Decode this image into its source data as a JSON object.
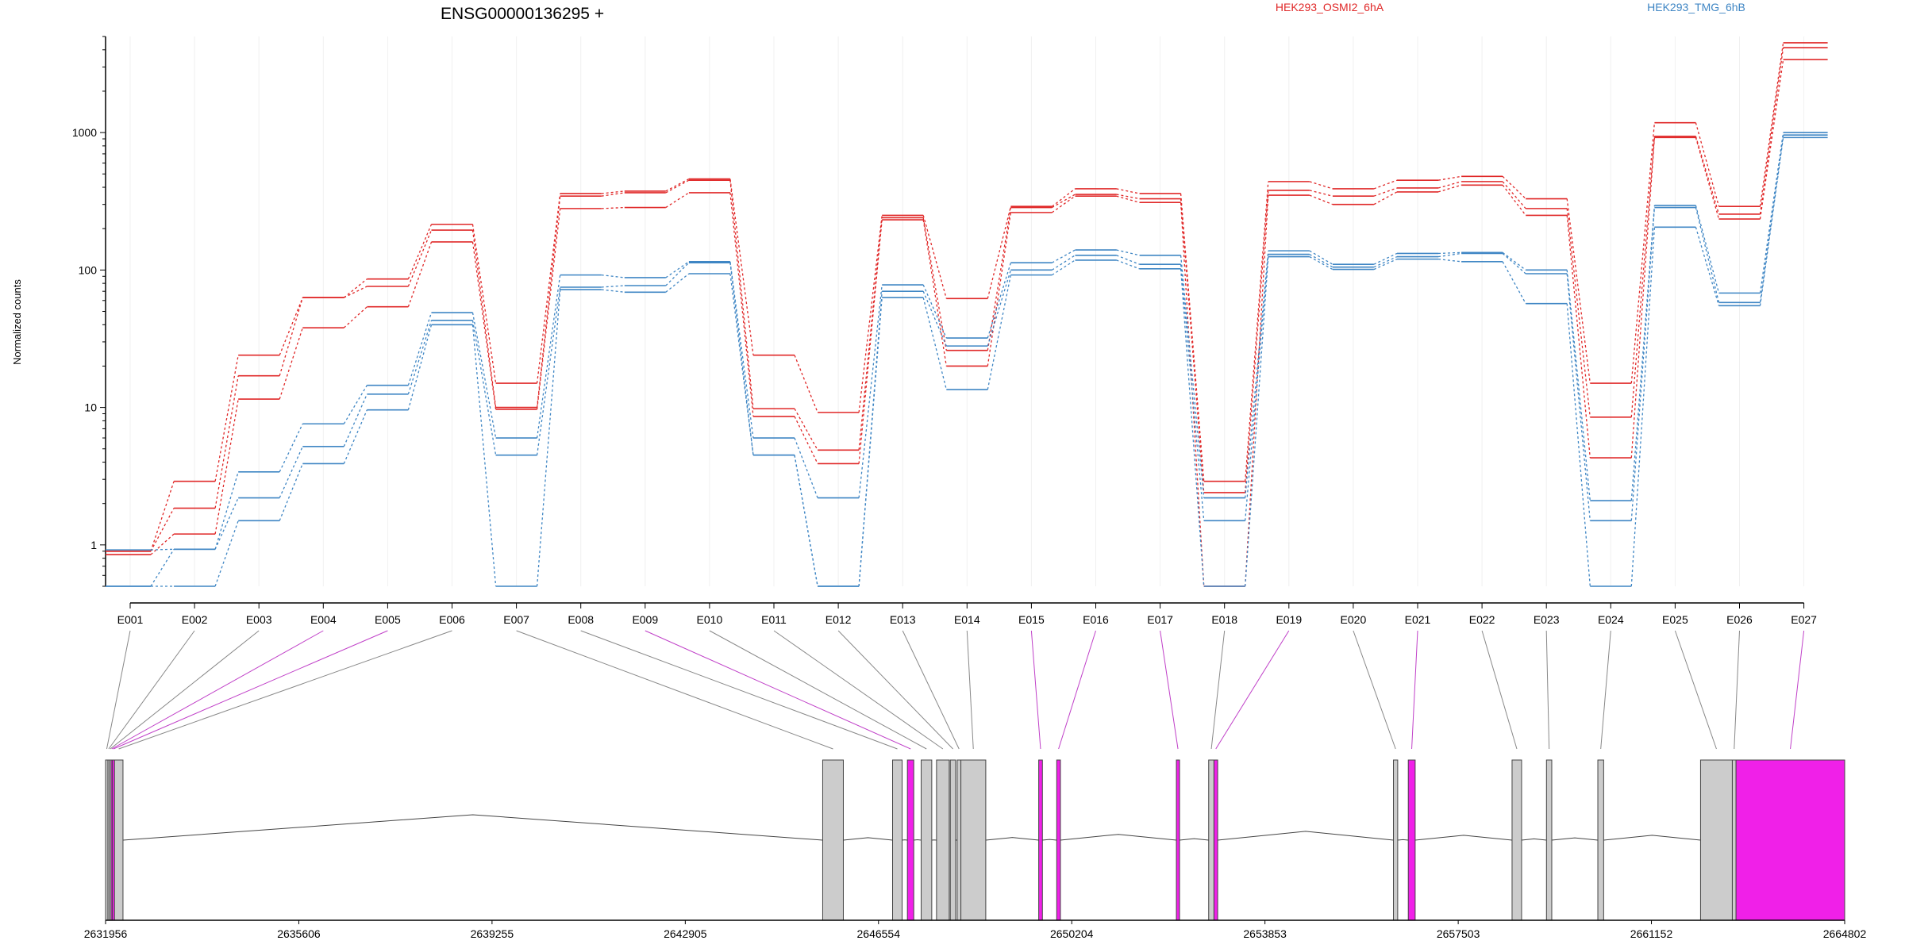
{
  "chart_data": {
    "type": "line",
    "title": "ENSG00000136295 +",
    "ylabel": "Normalized counts",
    "yscale": "log",
    "ylim": [
      0.5,
      5000
    ],
    "yticks": [
      "1",
      "10",
      "100",
      "1000"
    ],
    "grid": "vertical",
    "legend_position": "top-right",
    "colors": {
      "HEK293_OSMI2_6hA": "#e02828",
      "HEK293_TMG_6hB": "#3f86c4",
      "target_exon": "#f020e8",
      "exon": "#cccccc"
    },
    "categories": [
      "E001",
      "E002",
      "E003",
      "E004",
      "E005",
      "E006",
      "E007",
      "E008",
      "E009",
      "E010",
      "E011",
      "E012",
      "E013",
      "E014",
      "E015",
      "E016",
      "E017",
      "E018",
      "E019",
      "E020",
      "E021",
      "E022",
      "E023",
      "E024",
      "E025",
      "E026",
      "E027"
    ],
    "series": [
      {
        "name": "HEK293_OSMI2_6hA",
        "group": "HEK293_OSMI2_6hA",
        "values": [
          0.9,
          2.9,
          24,
          63,
          86,
          215,
          15,
          360,
          375,
          460,
          24,
          9.2,
          250,
          62,
          290,
          390,
          360,
          2.9,
          440,
          390,
          450,
          480,
          330,
          15,
          1180,
          290,
          4500
        ]
      },
      {
        "name": "",
        "group": "HEK293_OSMI2_6hA",
        "values": [
          0.9,
          1.85,
          17,
          63,
          76,
          195,
          10,
          345,
          365,
          450,
          9.8,
          4.9,
          240,
          26,
          285,
          355,
          330,
          2.4,
          380,
          345,
          395,
          440,
          280,
          8.5,
          940,
          255,
          4150
        ]
      },
      {
        "name": "",
        "group": "HEK293_OSMI2_6hA",
        "values": [
          0.85,
          1.2,
          11.5,
          38,
          54,
          160,
          9.7,
          280,
          285,
          365,
          8.6,
          3.9,
          232,
          20,
          262,
          345,
          310,
          0.5,
          350,
          300,
          370,
          415,
          250,
          4.3,
          920,
          235,
          3400
        ]
      },
      {
        "name": "",
        "group": "HEK293_TMG_6hB",
        "values": [
          0.92,
          0.93,
          3.4,
          7.6,
          14.5,
          49,
          6,
          92,
          88,
          115,
          6,
          2.2,
          78,
          32,
          113,
          140,
          128,
          2.2,
          138,
          110,
          132,
          134,
          100,
          2.1,
          295,
          68,
          1000
        ]
      },
      {
        "name": "",
        "group": "HEK293_TMG_6hB",
        "values": [
          0.5,
          0.93,
          2.2,
          5.2,
          12.5,
          43,
          4.5,
          75,
          77,
          113,
          4.5,
          0.5,
          70,
          28,
          100,
          128,
          110,
          1.5,
          130,
          105,
          125,
          132,
          94,
          1.5,
          285,
          58,
          960
        ]
      },
      {
        "name": "",
        "group": "HEK293_TMG_6hB",
        "values": [
          0.5,
          0.5,
          1.5,
          3.9,
          9.6,
          40,
          0.5,
          72,
          69,
          94,
          4.5,
          0.5,
          63,
          13.5,
          92,
          118,
          102,
          0.5,
          125,
          101,
          120,
          115,
          57,
          0.5,
          205,
          55,
          920
        ]
      }
    ],
    "gene_model": {
      "xlim": [
        2631956,
        2664802
      ],
      "xticks": [
        "2631956",
        "2635606",
        "2639255",
        "2642905",
        "2646554",
        "2650204",
        "2653853",
        "2657503",
        "2661152",
        "2664802"
      ],
      "exons": [
        {
          "id": "E001",
          "start": 2631956,
          "end": 2632000,
          "target": false
        },
        {
          "id": "E002",
          "start": 2632000,
          "end": 2632030,
          "target": false
        },
        {
          "id": "E003",
          "start": 2632030,
          "end": 2632060,
          "target": false
        },
        {
          "id": "E004",
          "start": 2632060,
          "end": 2632085,
          "target": true
        },
        {
          "id": "E005",
          "start": 2632085,
          "end": 2632125,
          "target": true
        },
        {
          "id": "E006",
          "start": 2632125,
          "end": 2632285,
          "target": false
        },
        {
          "id": "E007",
          "start": 2645500,
          "end": 2645890,
          "target": false
        },
        {
          "id": "E008",
          "start": 2646820,
          "end": 2647000,
          "target": false
        },
        {
          "id": "E009",
          "start": 2647100,
          "end": 2647220,
          "target": true
        },
        {
          "id": "E010",
          "start": 2647360,
          "end": 2647560,
          "target": false
        },
        {
          "id": "E011",
          "start": 2647650,
          "end": 2647890,
          "target": false
        },
        {
          "id": "E012",
          "start": 2647910,
          "end": 2648010,
          "target": false
        },
        {
          "id": "E013",
          "start": 2648040,
          "end": 2648110,
          "target": false
        },
        {
          "id": "E014",
          "start": 2648110,
          "end": 2648580,
          "target": false
        },
        {
          "id": "E015",
          "start": 2649580,
          "end": 2649650,
          "target": true
        },
        {
          "id": "E016",
          "start": 2649920,
          "end": 2649990,
          "target": true
        },
        {
          "id": "E017",
          "start": 2652180,
          "end": 2652240,
          "target": true
        },
        {
          "id": "E018",
          "start": 2652790,
          "end": 2652890,
          "target": false
        },
        {
          "id": "E019",
          "start": 2652890,
          "end": 2652960,
          "target": true
        },
        {
          "id": "E020",
          "start": 2656280,
          "end": 2656360,
          "target": false
        },
        {
          "id": "E021",
          "start": 2656560,
          "end": 2656690,
          "target": true
        },
        {
          "id": "E022",
          "start": 2658520,
          "end": 2658700,
          "target": false
        },
        {
          "id": "E023",
          "start": 2659170,
          "end": 2659270,
          "target": false
        },
        {
          "id": "E024",
          "start": 2660140,
          "end": 2660250,
          "target": false
        },
        {
          "id": "E025",
          "start": 2662080,
          "end": 2662680,
          "target": false
        },
        {
          "id": "E026",
          "start": 2662680,
          "end": 2662750,
          "target": false
        },
        {
          "id": "E027",
          "start": 2662750,
          "end": 2664802,
          "target": true
        }
      ]
    }
  }
}
